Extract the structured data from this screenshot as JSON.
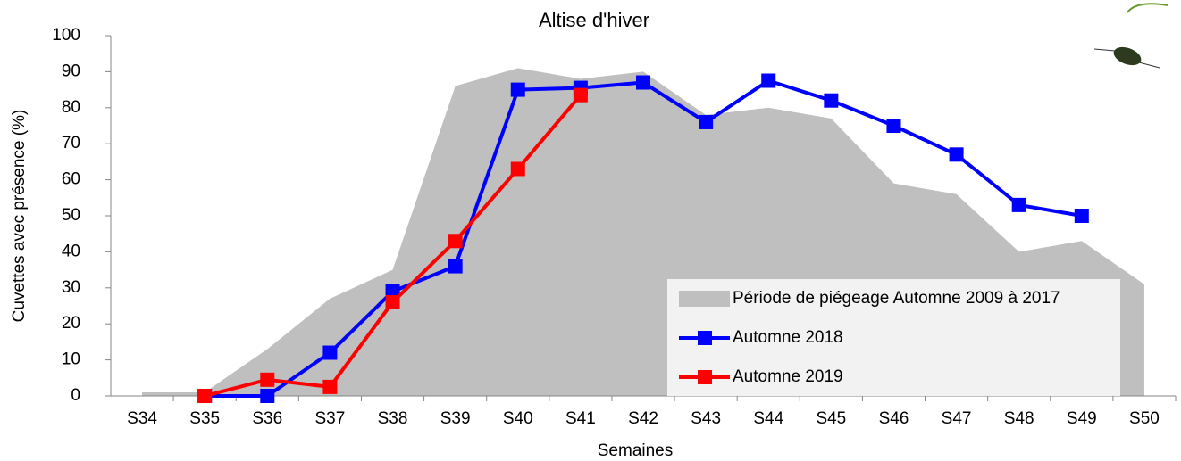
{
  "chart_data": {
    "type": "line",
    "title": "Altise d'hiver",
    "xlabel": "Semaines",
    "ylabel": "Cuvettes avec présence (%)",
    "categories": [
      "S34",
      "S35",
      "S36",
      "S37",
      "S38",
      "S39",
      "S40",
      "S41",
      "S42",
      "S43",
      "S44",
      "S45",
      "S46",
      "S47",
      "S48",
      "S49",
      "S50"
    ],
    "ylim": [
      0,
      100
    ],
    "yticks": [
      0,
      10,
      20,
      30,
      40,
      50,
      60,
      70,
      80,
      90,
      100
    ],
    "grid": false,
    "legend": "lower right",
    "series": [
      {
        "name": "Période de piégeage Automne 2009 à 2017",
        "type": "area",
        "color": "#bfbfbf",
        "values": [
          1,
          1,
          13,
          27,
          35,
          86,
          91,
          88,
          90,
          78,
          80,
          77,
          59,
          56,
          40,
          43,
          31
        ]
      },
      {
        "name": "Automne 2018",
        "type": "line",
        "color": "#0000ff",
        "values": [
          null,
          0,
          0,
          12,
          29,
          36,
          85,
          85.5,
          87,
          76,
          87.5,
          82,
          75,
          67,
          53,
          50,
          null
        ]
      },
      {
        "name": "Automne 2019",
        "type": "line",
        "color": "#ff0000",
        "values": [
          null,
          0,
          4.5,
          2.5,
          26,
          43,
          63,
          83.5,
          null,
          null,
          null,
          null,
          null,
          null,
          null,
          null,
          null
        ]
      }
    ]
  }
}
